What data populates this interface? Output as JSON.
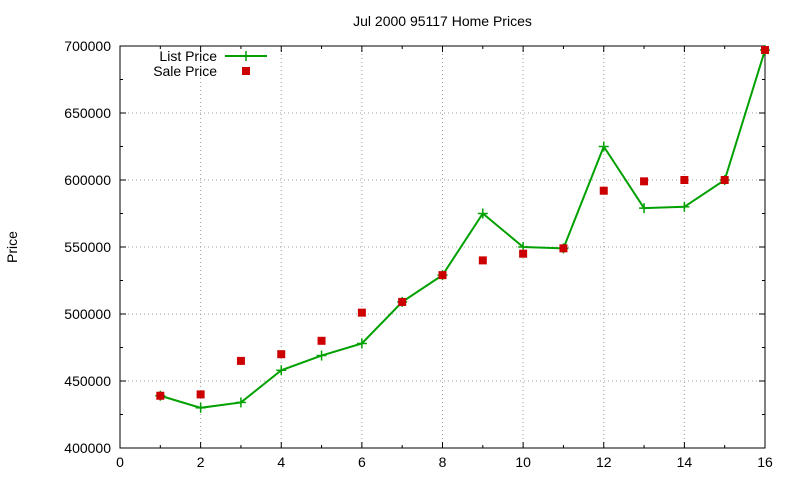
{
  "chart_data": {
    "type": "line",
    "title": "Jul 2000 95117 Home Prices",
    "xlabel": "",
    "ylabel": "Price",
    "xlim": [
      0,
      16
    ],
    "ylim": [
      400000,
      700000
    ],
    "xticks": [
      0,
      2,
      4,
      6,
      8,
      10,
      12,
      14,
      16
    ],
    "yticks": [
      400000,
      450000,
      500000,
      550000,
      600000,
      650000,
      700000
    ],
    "grid": true,
    "legend_position": "top-left",
    "series": [
      {
        "name": "List Price",
        "style": "line+cross",
        "color": "#00a000",
        "points": [
          [
            1,
            439000
          ],
          [
            2,
            430000
          ],
          [
            3,
            434000
          ],
          [
            4,
            458000
          ],
          [
            5,
            469000
          ],
          [
            6,
            478000
          ],
          [
            7,
            509000
          ],
          [
            8,
            529000
          ],
          [
            9,
            575000
          ],
          [
            10,
            550000
          ],
          [
            11,
            549000
          ],
          [
            12,
            625000
          ],
          [
            13,
            579000
          ],
          [
            14,
            580000
          ],
          [
            15,
            600000
          ],
          [
            16,
            697000
          ]
        ]
      },
      {
        "name": "Sale Price",
        "style": "square",
        "color": "#cc0000",
        "points": [
          [
            1,
            439000
          ],
          [
            2,
            440000
          ],
          [
            3,
            465000
          ],
          [
            4,
            470000
          ],
          [
            5,
            480000
          ],
          [
            6,
            501000
          ],
          [
            7,
            509000
          ],
          [
            8,
            529000
          ],
          [
            9,
            540000
          ],
          [
            10,
            545000
          ],
          [
            11,
            549000
          ],
          [
            12,
            592000
          ],
          [
            13,
            599000
          ],
          [
            14,
            600000
          ],
          [
            15,
            600000
          ],
          [
            16,
            697000
          ]
        ]
      }
    ]
  }
}
